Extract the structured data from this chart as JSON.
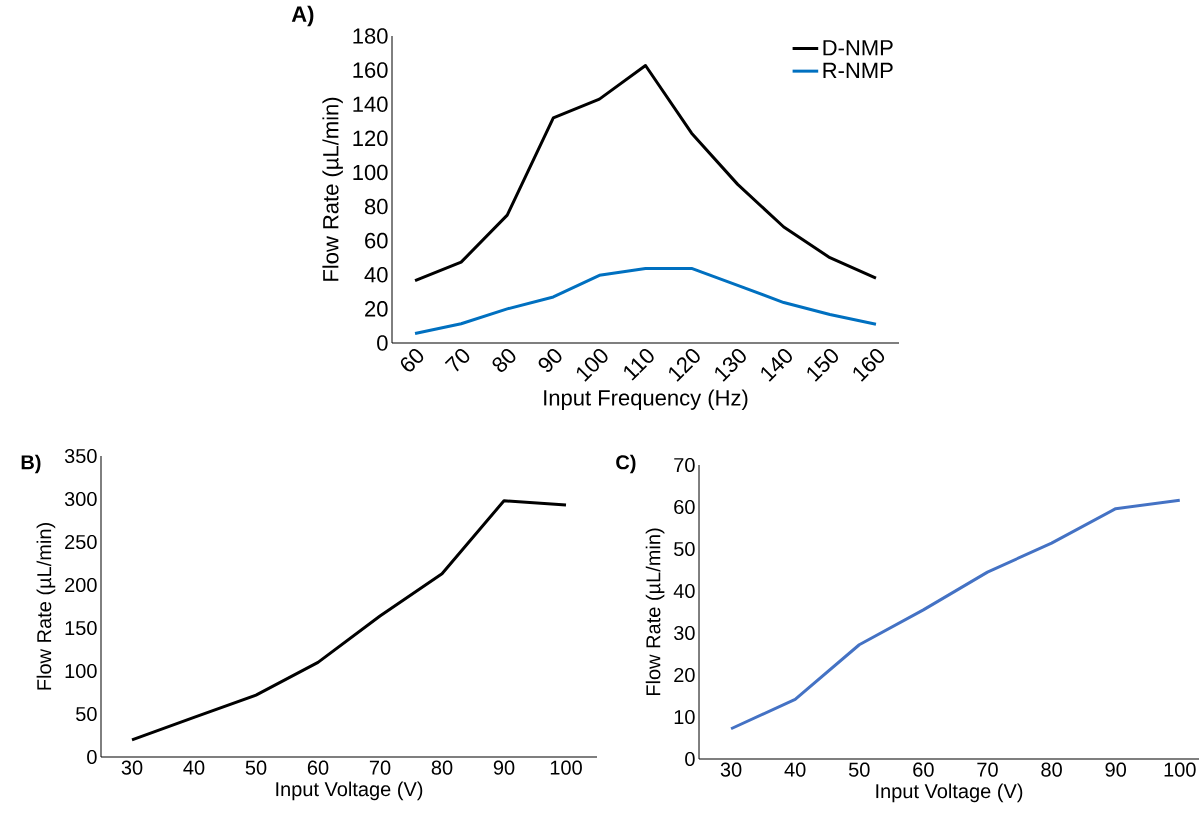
{
  "chart_data": [
    {
      "type": "line",
      "title": "A)",
      "xlabel": "Input Frequency (Hz)",
      "ylabel": "Flow Rate (µL/min)",
      "categories": [
        "60",
        "70",
        "80",
        "90",
        "100",
        "110",
        "120",
        "130",
        "140",
        "150",
        "160"
      ],
      "ylim": [
        0,
        180
      ],
      "yticks": [
        0,
        20,
        40,
        60,
        80,
        100,
        120,
        140,
        160,
        180
      ],
      "legend": "top right",
      "series": [
        {
          "name": "D-NMP",
          "color": "#000000",
          "values": [
            36.6,
            47.4,
            75,
            132,
            143,
            162.7,
            123,
            93,
            68,
            50,
            38
          ]
        },
        {
          "name": "R-NMP",
          "color": "#0070c0",
          "values": [
            5.6,
            11.3,
            20,
            27,
            39.7,
            43.7,
            43.7,
            33.8,
            23.7,
            16.7,
            11
          ]
        }
      ]
    },
    {
      "type": "line",
      "title": "B)",
      "xlabel": "Input Voltage (V)",
      "ylabel": "Flow Rate (µL/min)",
      "categories": [
        "30",
        "40",
        "50",
        "60",
        "70",
        "80",
        "90",
        "100"
      ],
      "ylim": [
        0,
        350
      ],
      "yticks": [
        0,
        50,
        100,
        150,
        200,
        250,
        300,
        350
      ],
      "series": [
        {
          "color": "#000000",
          "values": [
            20,
            46,
            72,
            110,
            164,
            213,
            298,
            293
          ]
        }
      ]
    },
    {
      "type": "line",
      "title": "C)",
      "xlabel": "Input Voltage (V)",
      "ylabel": "Flow Rate (µL/min)",
      "categories": [
        "30",
        "40",
        "50",
        "60",
        "70",
        "80",
        "90",
        "100"
      ],
      "ylim": [
        0,
        70
      ],
      "yticks": [
        0,
        10,
        20,
        30,
        40,
        50,
        60,
        70
      ],
      "series": [
        {
          "color": "#4472c4",
          "values": [
            7.2,
            14.2,
            27.2,
            35.5,
            44.5,
            51.4,
            59.6,
            61.6
          ]
        }
      ]
    }
  ]
}
